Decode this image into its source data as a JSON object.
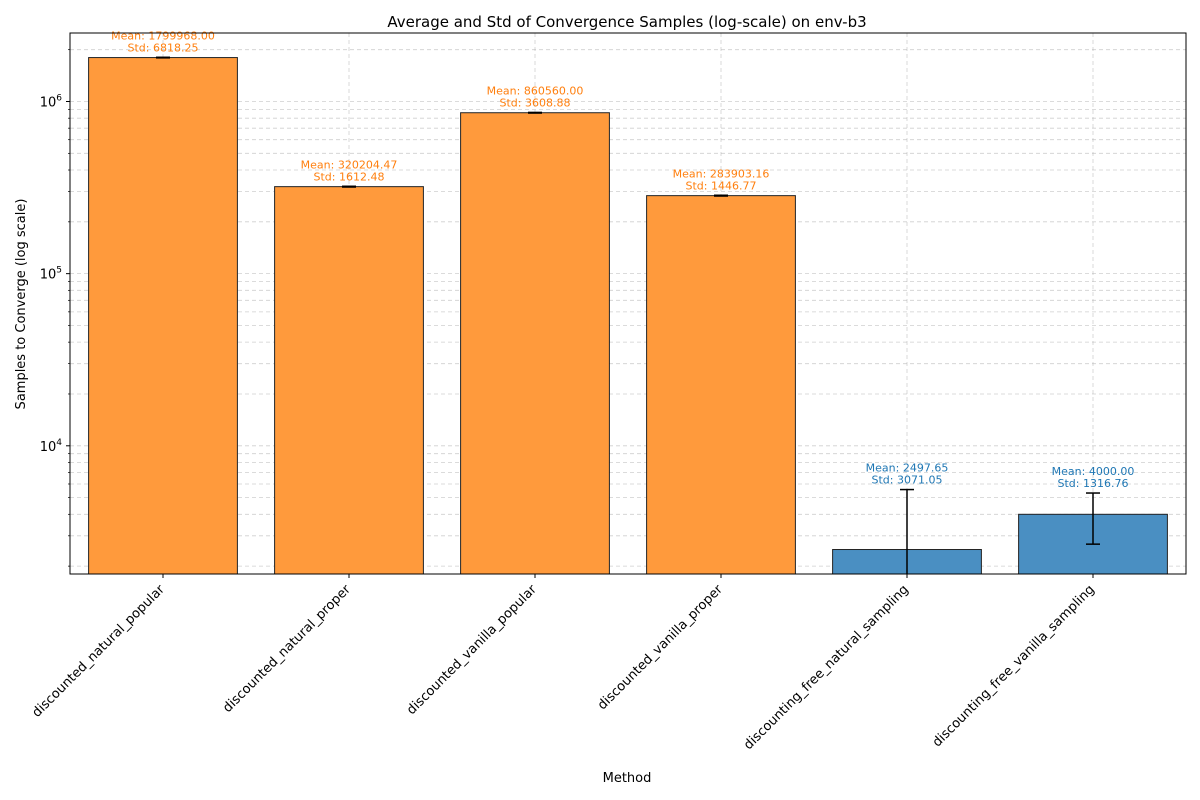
{
  "chart_data": {
    "type": "bar",
    "title": "Average and Std of Convergence Samples (log-scale) on env-b3",
    "xlabel": "Method",
    "ylabel": "Samples to Converge (log scale)",
    "yscale": "log",
    "ylim": [
      1800,
      2500000
    ],
    "yticks": [
      {
        "value": 10000,
        "base": "10",
        "exp": "4"
      },
      {
        "value": 100000,
        "base": "10",
        "exp": "5"
      },
      {
        "value": 1000000,
        "base": "10",
        "exp": "6"
      }
    ],
    "grid": true,
    "categories": [
      "discounted_natural_popular",
      "discounted_natural_proper",
      "discounted_vanilla_popular",
      "discounted_vanilla_proper",
      "discounting_free_natural_sampling",
      "discounting_free_vanilla_sampling"
    ],
    "values": [
      1799968.0,
      320204.47,
      860560.0,
      283903.16,
      2497.65,
      4000.0
    ],
    "stds": [
      6818.25,
      1612.48,
      3608.88,
      1446.77,
      3071.05,
      1316.76
    ],
    "bar_colors": [
      "#ff9a3c",
      "#ff9a3c",
      "#ff9a3c",
      "#ff9a3c",
      "#4a8fc2",
      "#4a8fc2"
    ],
    "label_colors": [
      "#ff7f0e",
      "#ff7f0e",
      "#ff7f0e",
      "#ff7f0e",
      "#1f77b4",
      "#1f77b4"
    ],
    "mean_labels": [
      "Mean: 1799968.00",
      "Mean: 320204.47",
      "Mean: 860560.00",
      "Mean: 283903.16",
      "Mean: 2497.65",
      "Mean: 4000.00"
    ],
    "std_labels": [
      "Std: 6818.25",
      "Std: 1612.48",
      "Std: 3608.88",
      "Std: 1446.77",
      "Std: 3071.05",
      "Std: 1316.76"
    ]
  }
}
